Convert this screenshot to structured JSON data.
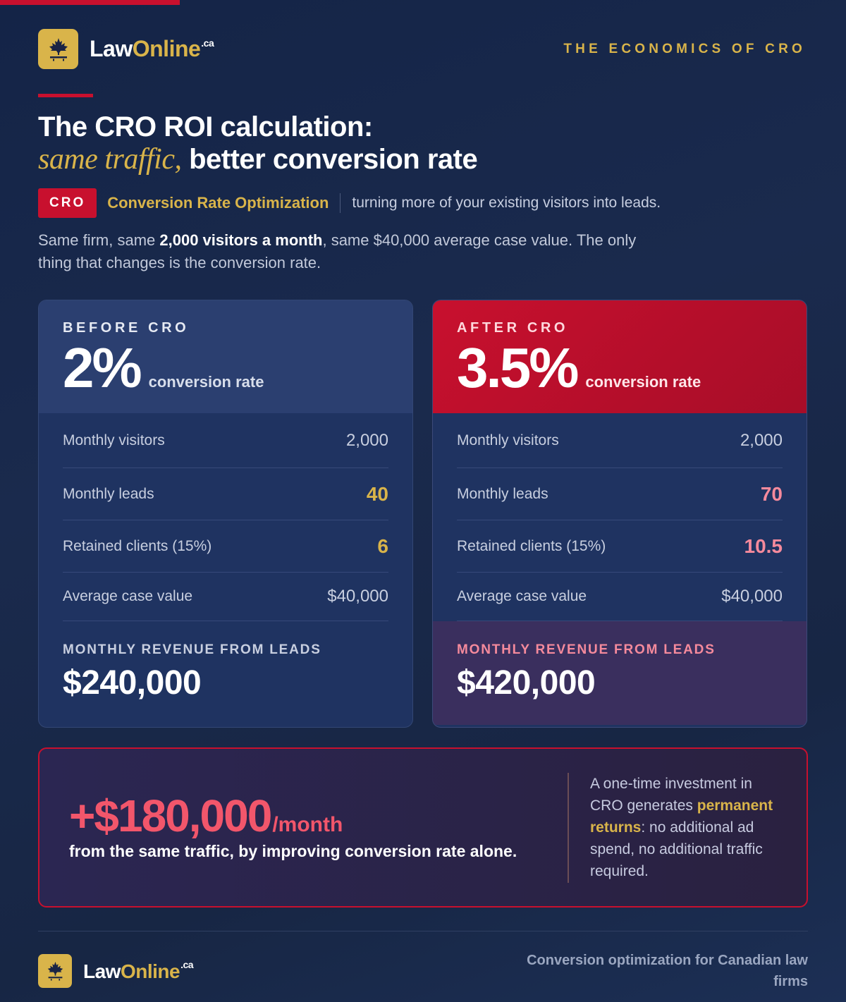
{
  "brand": {
    "name_part1": "Law",
    "name_part2": "Online",
    "tld": ".ca"
  },
  "header": {
    "eyebrow": "THE ECONOMICS OF CRO"
  },
  "title": {
    "line1": "The CRO ROI calculation:",
    "line2_italic": "same traffic,",
    "line2_rest": " better conversion rate"
  },
  "definition": {
    "pill": "CRO",
    "term": "Conversion Rate Optimization",
    "text": "turning more of your existing visitors into leads."
  },
  "intro": {
    "part1": "Same firm, same ",
    "bold": "2,000 visitors a month",
    "part2": ", same $40,000 average case value. The only thing that changes is the conversion rate."
  },
  "before": {
    "label": "BEFORE CRO",
    "rate": "2%",
    "rate_unit": "conversion rate",
    "rows": [
      {
        "label": "Monthly visitors",
        "value": "2,000"
      },
      {
        "label": "Monthly leads",
        "value": "40"
      },
      {
        "label": "Retained clients (15%)",
        "value": "6"
      },
      {
        "label": "Average case value",
        "value": "$40,000"
      }
    ],
    "revenue_label": "MONTHLY REVENUE FROM LEADS",
    "revenue_value": "$240,000"
  },
  "after": {
    "label": "AFTER CRO",
    "rate": "3.5%",
    "rate_unit": "conversion rate",
    "rows": [
      {
        "label": "Monthly visitors",
        "value": "2,000"
      },
      {
        "label": "Monthly leads",
        "value": "70"
      },
      {
        "label": "Retained clients (15%)",
        "value": "10.5"
      },
      {
        "label": "Average case value",
        "value": "$40,000"
      }
    ],
    "revenue_label": "MONTHLY REVENUE FROM LEADS",
    "revenue_value": "$420,000"
  },
  "summary": {
    "gain_value": "+$180,000",
    "gain_unit": "/month",
    "gain_sub": "from the same traffic, by improving conversion rate alone.",
    "note_part1": "A one-time investment in CRO generates ",
    "note_bold": "permanent returns",
    "note_part2": ": no additional ad spend, no additional traffic required."
  },
  "footer": {
    "tagline": "Conversion optimization for Canadian law firms"
  },
  "colors": {
    "accent_red": "#c8102e",
    "gold": "#d9b44a",
    "pink": "#f58a9c",
    "background": "#172644"
  },
  "icons": {
    "logo": "maple-leaf-icon"
  }
}
